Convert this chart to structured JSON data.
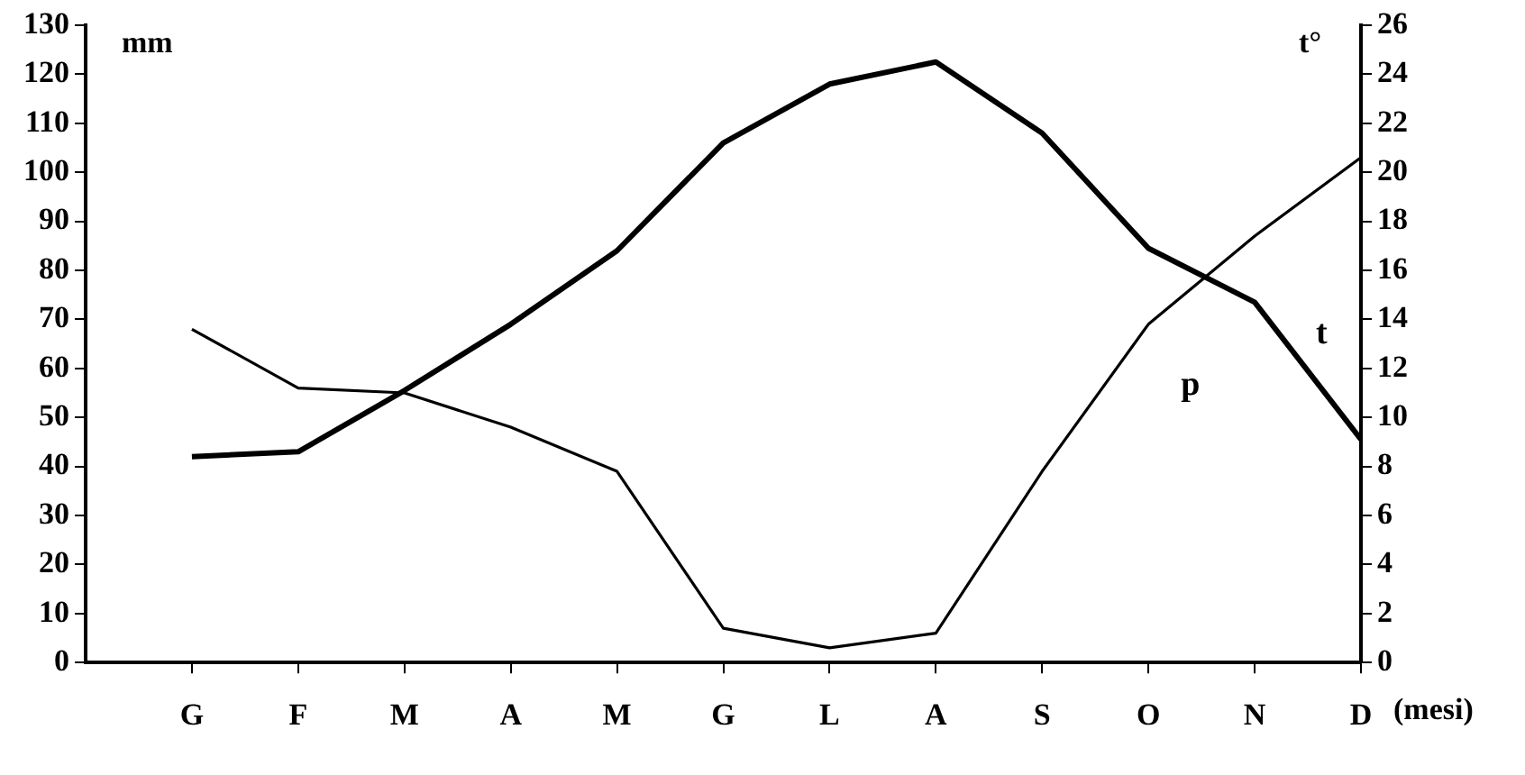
{
  "chart_data": {
    "type": "line",
    "xlabel": "(mesi)",
    "ylabel": "mm",
    "y2label": "t°",
    "categories": [
      "G",
      "F",
      "M",
      "A",
      "M",
      "G",
      "L",
      "A",
      "S",
      "O",
      "N",
      "D"
    ],
    "series": [
      {
        "name": "p",
        "color": "#000000",
        "values": [
          68,
          56,
          55,
          48,
          39,
          7,
          3,
          6,
          39,
          69,
          87,
          103
        ]
      },
      {
        "name": "t",
        "color": "#000000",
        "axis": "y2",
        "values": [
          8.4,
          8.6,
          11.1,
          13.8,
          16.8,
          21.2,
          23.6,
          24.5,
          21.6,
          16.9,
          14.7,
          9.1
        ]
      }
    ],
    "ylim": [
      0,
      130
    ],
    "yticks": [
      0,
      10,
      20,
      30,
      40,
      50,
      60,
      70,
      80,
      90,
      100,
      110,
      120,
      130
    ],
    "y2lim": [
      0,
      26
    ],
    "y2ticks": [
      0,
      2,
      4,
      6,
      8,
      10,
      12,
      14,
      16,
      18,
      20,
      22,
      24,
      26
    ],
    "grid": false,
    "legend": false,
    "marker": "none",
    "line_style": "solid"
  }
}
